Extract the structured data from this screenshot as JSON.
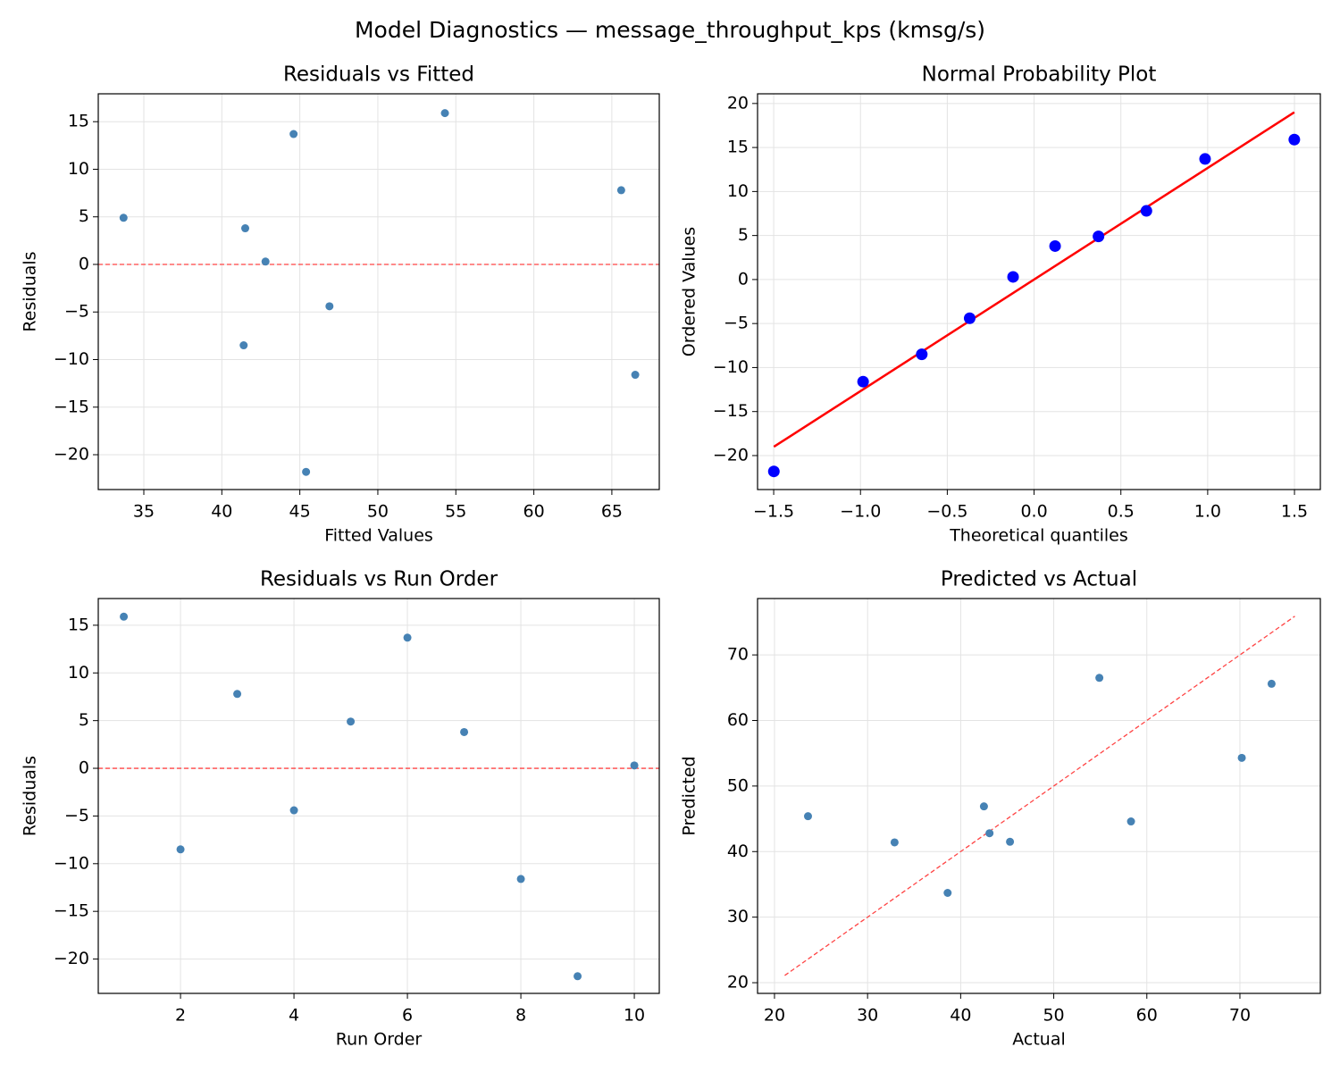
{
  "title": "Model Diagnostics — message_throughput_kps (kmsg/s)",
  "chart_data": [
    {
      "type": "scatter",
      "title": "Residuals vs Fitted",
      "xlabel": "Fitted Values",
      "ylabel": "Residuals",
      "xlim": [
        32.08,
        68.04
      ],
      "ylim": [
        -23.66,
        17.93
      ],
      "grid": true,
      "xticks": [
        35,
        40,
        45,
        50,
        55,
        60,
        65
      ],
      "yticks": [
        {
          "value": -20,
          "label": "−20"
        },
        {
          "value": -15,
          "label": "−15"
        },
        {
          "value": -10,
          "label": "−10"
        },
        {
          "value": -5,
          "label": "−5"
        },
        0,
        5,
        10,
        15
      ],
      "points": {
        "color": "#4682b4",
        "x": [
          54.3,
          41.4,
          65.6,
          46.9,
          33.7,
          44.6,
          41.5,
          66.5,
          45.4,
          42.8
        ],
        "values": [
          15.9,
          -8.5,
          7.8,
          -4.4,
          4.9,
          13.7,
          3.8,
          -11.6,
          -21.8,
          0.3
        ]
      },
      "hline": {
        "value": 0,
        "color": "#ff4444",
        "dashed": true
      }
    },
    {
      "type": "scatter",
      "title": "Normal Probability Plot",
      "xlabel": "Theoretical quantiles",
      "ylabel": "Ordered Values",
      "xlim": [
        -1.593,
        1.649
      ],
      "ylim": [
        -23.86,
        21.1
      ],
      "grid": true,
      "xticks": [
        {
          "value": -1.5,
          "label": "−1.5"
        },
        {
          "value": -1,
          "label": "−1.0"
        },
        {
          "value": -0.5,
          "label": "−0.5"
        },
        {
          "value": 0,
          "label": "0.0"
        },
        0.5,
        {
          "value": 1,
          "label": "1.0"
        },
        1.5
      ],
      "yticks": [
        {
          "value": -20,
          "label": "−20"
        },
        {
          "value": -15,
          "label": "−15"
        },
        {
          "value": -10,
          "label": "−10"
        },
        {
          "value": -5,
          "label": "−5"
        },
        0,
        5,
        10,
        15,
        20
      ],
      "points": {
        "color": "#0000ff",
        "size": 6.5,
        "x": [
          -1.499,
          -0.985,
          -0.647,
          -0.371,
          -0.121,
          0.121,
          0.371,
          0.647,
          0.985,
          1.499
        ],
        "values": [
          -21.8,
          -11.6,
          -8.5,
          -4.4,
          0.3,
          3.8,
          4.9,
          7.8,
          13.7,
          15.9
        ]
      },
      "ref_line": {
        "color": "#ff0000",
        "dashed": false,
        "x": [
          -1.499,
          1.499
        ],
        "values": [
          -19.0,
          19.0
        ]
      }
    },
    {
      "type": "scatter",
      "title": "Residuals vs Run Order",
      "xlabel": "Run Order",
      "ylabel": "Residuals",
      "xlim": [
        0.55,
        10.44
      ],
      "ylim": [
        -23.6,
        17.8
      ],
      "grid": true,
      "xticks": [
        2,
        4,
        6,
        8,
        10
      ],
      "yticks": [
        {
          "value": -20,
          "label": "−20"
        },
        {
          "value": -15,
          "label": "−15"
        },
        {
          "value": -10,
          "label": "−10"
        },
        {
          "value": -5,
          "label": "−5"
        },
        0,
        5,
        10,
        15
      ],
      "points": {
        "color": "#4682b4",
        "x": [
          1,
          2,
          3,
          4,
          5,
          6,
          7,
          8,
          9,
          10
        ],
        "values": [
          15.9,
          -8.5,
          7.8,
          -4.4,
          4.9,
          13.7,
          3.8,
          -11.6,
          -21.8,
          0.3
        ]
      },
      "hline": {
        "value": 0,
        "color": "#ff4444",
        "dashed": true
      }
    },
    {
      "type": "scatter",
      "title": "Predicted vs Actual",
      "xlabel": "Actual",
      "ylabel": "Predicted",
      "xlim": [
        18.18,
        78.64
      ],
      "ylim": [
        18.37,
        78.6
      ],
      "grid": true,
      "xticks": [
        20,
        30,
        40,
        50,
        60,
        70
      ],
      "yticks": [
        20,
        30,
        40,
        50,
        60,
        70
      ],
      "points": {
        "color": "#4682b4",
        "x": [
          70.2,
          32.9,
          73.4,
          42.5,
          38.6,
          58.3,
          45.3,
          54.9,
          23.6,
          43.1
        ],
        "values": [
          54.3,
          41.4,
          65.6,
          46.9,
          33.7,
          44.6,
          41.5,
          66.5,
          45.4,
          42.8
        ]
      },
      "ref_line": {
        "color": "#ff4444",
        "dashed": true,
        "x": [
          21.1,
          75.9
        ],
        "values": [
          21.1,
          75.9
        ]
      }
    }
  ]
}
